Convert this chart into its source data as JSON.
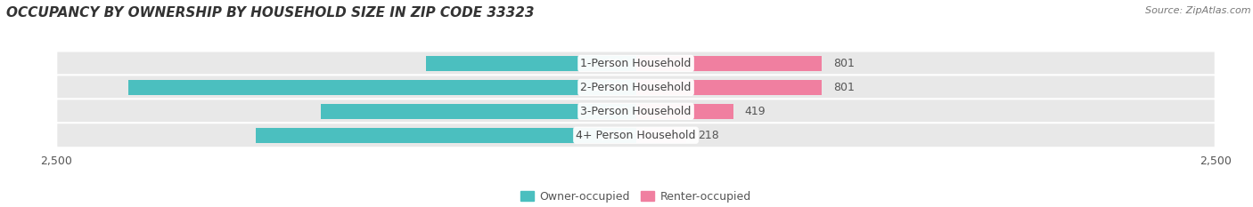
{
  "title": "OCCUPANCY BY OWNERSHIP BY HOUSEHOLD SIZE IN ZIP CODE 33323",
  "source": "Source: ZipAtlas.com",
  "categories": [
    "1-Person Household",
    "2-Person Household",
    "3-Person Household",
    "4+ Person Household"
  ],
  "owner_values": [
    904,
    2191,
    1359,
    1641
  ],
  "renter_values": [
    801,
    801,
    419,
    218
  ],
  "owner_color": "#4bbfbf",
  "renter_color": "#f07fa0",
  "renter_color_light": "#f9b8cc",
  "owner_label": "Owner-occupied",
  "renter_label": "Renter-occupied",
  "axis_max": 2500,
  "bar_height": 0.62,
  "bg_color": "#ffffff",
  "bar_bg_color": "#e8e8e8",
  "title_fontsize": 11,
  "source_fontsize": 8,
  "tick_fontsize": 9,
  "value_fontsize": 9,
  "category_fontsize": 9
}
